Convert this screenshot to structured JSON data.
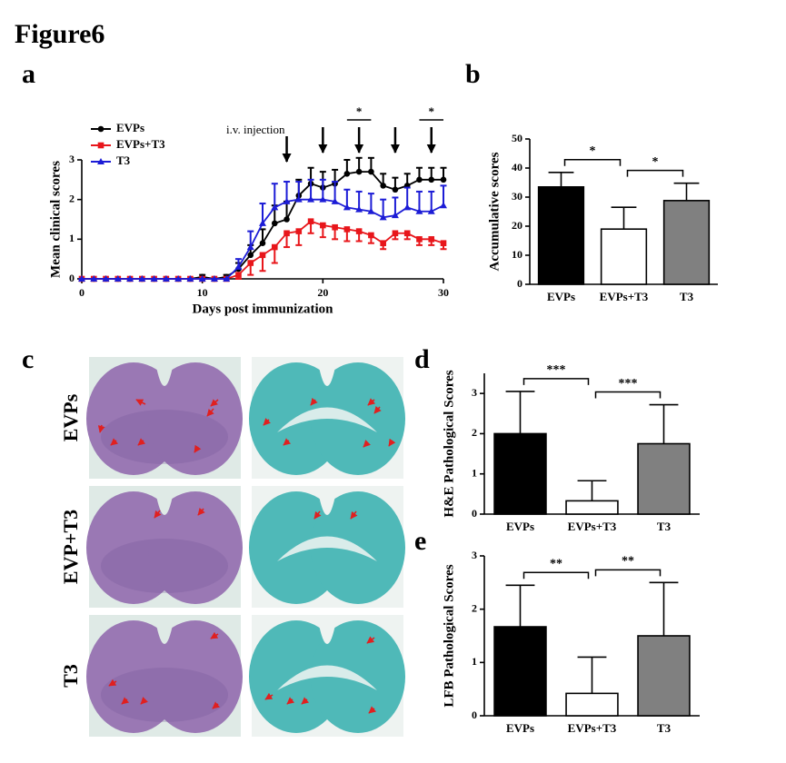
{
  "figure_title": "Figure6",
  "panel_labels": [
    "a",
    "b",
    "c",
    "d",
    "e"
  ],
  "chart_data": [
    {
      "type": "line",
      "xlabel": "Days post immunization",
      "ylabel": "Mean clinical scores",
      "x": [
        0,
        1,
        2,
        3,
        4,
        5,
        6,
        7,
        8,
        9,
        10,
        11,
        12,
        13,
        14,
        15,
        16,
        17,
        18,
        19,
        20,
        21,
        22,
        23,
        24,
        25,
        26,
        27,
        28,
        29,
        30
      ],
      "xlim": [
        0,
        30
      ],
      "xticks": [
        0,
        10,
        20,
        30
      ],
      "ylim": [
        0,
        3
      ],
      "yticks": [
        0,
        1,
        2,
        3
      ],
      "annotation": "i.v. injection",
      "injection_days": [
        17,
        20,
        23,
        26,
        29
      ],
      "significance": [
        {
          "label": "*",
          "x": [
            22,
            24
          ]
        },
        {
          "label": "*",
          "x": [
            28,
            30
          ]
        }
      ],
      "series": [
        {
          "name": "EVPs",
          "color": "#000000",
          "marker": "circle",
          "error_direction": "up",
          "values": [
            0,
            0,
            0,
            0,
            0,
            0,
            0,
            0,
            0,
            0,
            0.05,
            0,
            0.05,
            0.25,
            0.6,
            0.9,
            1.4,
            1.5,
            2.1,
            2.4,
            2.3,
            2.4,
            2.65,
            2.7,
            2.7,
            2.35,
            2.25,
            2.35,
            2.5,
            2.5,
            2.5
          ],
          "errors": [
            0,
            0,
            0,
            0,
            0,
            0,
            0,
            0,
            0,
            0,
            0.05,
            0,
            0.05,
            0.15,
            0.25,
            0.35,
            0.45,
            0.45,
            0.4,
            0.4,
            0.4,
            0.35,
            0.35,
            0.35,
            0.35,
            0.3,
            0.3,
            0.3,
            0.3,
            0.3,
            0.3
          ]
        },
        {
          "name": "EVPs+T3",
          "color": "#e8161b",
          "marker": "square",
          "error_direction": "down",
          "values": [
            0,
            0,
            0,
            0,
            0,
            0,
            0,
            0,
            0,
            0,
            0,
            0,
            0,
            0.1,
            0.4,
            0.6,
            0.8,
            1.15,
            1.2,
            1.45,
            1.35,
            1.3,
            1.25,
            1.2,
            1.1,
            0.9,
            1.15,
            1.15,
            1.0,
            1.0,
            0.9
          ],
          "errors": [
            0,
            0,
            0,
            0,
            0,
            0,
            0,
            0,
            0,
            0,
            0,
            0,
            0,
            0.1,
            0.3,
            0.4,
            0.4,
            0.35,
            0.35,
            0.3,
            0.3,
            0.3,
            0.3,
            0.25,
            0.2,
            0.15,
            0.15,
            0.15,
            0.15,
            0.15,
            0.15
          ]
        },
        {
          "name": "T3",
          "color": "#1c1cd6",
          "marker": "triangle",
          "error_direction": "up",
          "values": [
            0,
            0,
            0,
            0,
            0,
            0,
            0,
            0,
            0,
            0,
            0,
            0,
            0,
            0.3,
            0.8,
            1.4,
            1.8,
            1.95,
            2.0,
            2.0,
            2.0,
            1.95,
            1.8,
            1.75,
            1.7,
            1.55,
            1.6,
            1.8,
            1.7,
            1.7,
            1.85
          ],
          "errors": [
            0,
            0,
            0,
            0,
            0,
            0,
            0,
            0,
            0,
            0,
            0,
            0,
            0,
            0.2,
            0.4,
            0.5,
            0.6,
            0.5,
            0.45,
            0.5,
            0.5,
            0.5,
            0.45,
            0.45,
            0.45,
            0.45,
            0.45,
            0.5,
            0.5,
            0.5,
            0.5
          ]
        }
      ]
    },
    {
      "type": "bar",
      "ylabel": "Accumulative scores",
      "categories": [
        "EVPs",
        "EVPs+T3",
        "T3"
      ],
      "values": [
        33.5,
        19,
        28.8
      ],
      "errors": [
        5,
        7.5,
        6
      ],
      "colors": [
        "#000000",
        "#ffffff",
        "#808080"
      ],
      "ylim": [
        0,
        50
      ],
      "yticks": [
        0,
        10,
        20,
        30,
        40,
        50
      ],
      "significance": [
        {
          "label": "*",
          "between": [
            0,
            1
          ]
        },
        {
          "label": "*",
          "between": [
            1,
            2
          ]
        }
      ]
    },
    {
      "type": "bar",
      "ylabel": "H&E Pathological Scores",
      "categories": [
        "EVPs",
        "EVPs+T3",
        "T3"
      ],
      "values": [
        2,
        0.33,
        1.75
      ],
      "errors": [
        1.05,
        0.5,
        0.97
      ],
      "colors": [
        "#000000",
        "#ffffff",
        "#808080"
      ],
      "ylim": [
        0,
        3.5
      ],
      "yticks": [
        0,
        1,
        2,
        3
      ],
      "significance": [
        {
          "label": "***",
          "between": [
            0,
            1
          ]
        },
        {
          "label": "***",
          "between": [
            1,
            2
          ]
        }
      ]
    },
    {
      "type": "bar",
      "ylabel": "LFB Pathological Scores",
      "categories": [
        "EVPs",
        "EVPs+T3",
        "T3"
      ],
      "values": [
        1.67,
        0.42,
        1.5
      ],
      "errors": [
        0.78,
        0.68,
        1.0
      ],
      "colors": [
        "#000000",
        "#ffffff",
        "#808080"
      ],
      "ylim": [
        0,
        3
      ],
      "yticks": [
        0,
        1,
        2,
        3
      ],
      "significance": [
        {
          "label": "**",
          "between": [
            0,
            1
          ]
        },
        {
          "label": "**",
          "between": [
            1,
            2
          ]
        }
      ]
    }
  ],
  "histology": {
    "row_labels": [
      "EVPs",
      "EVP+T3",
      "T3"
    ]
  }
}
